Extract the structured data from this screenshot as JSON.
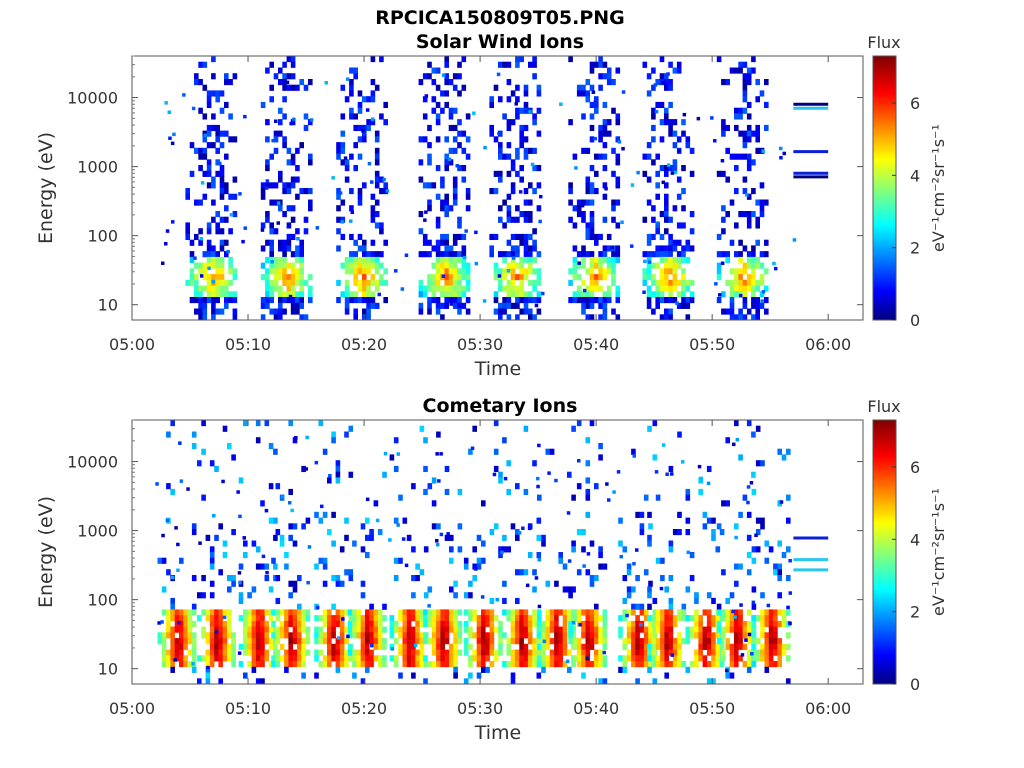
{
  "figure": {
    "title": "RPCICA150809T05.PNG"
  },
  "chart_data": [
    {
      "type": "heatmap",
      "title": "Solar Wind Ions",
      "xlabel": "Time",
      "ylabel": "Energy (eV)",
      "x_range": [
        "05:00",
        "06:03"
      ],
      "x_ticks": [
        "05:00",
        "05:10",
        "05:20",
        "05:30",
        "05:40",
        "05:50",
        "06:00"
      ],
      "y_scale": "log",
      "y_range": [
        6,
        40000
      ],
      "y_ticks": [
        "10",
        "100",
        "1000",
        "10000"
      ],
      "colorbar": {
        "label": "Flux",
        "unit": "eV⁻¹cm⁻²sr⁻¹s⁻¹",
        "range": [
          0,
          7.3
        ],
        "ticks": [
          "0",
          "2",
          "4",
          "6"
        ]
      },
      "bursts_center_min": [
        6.8,
        13.3,
        19.8,
        26.9,
        33.0,
        39.8,
        46.2,
        52.6
      ],
      "core_energy_eV": 25,
      "core_flux_peak": 5,
      "calibration_lines": [
        {
          "energy_eV": 800,
          "color": "#0a1fd6"
        },
        {
          "energy_eV": 710,
          "color": "#00007f"
        },
        {
          "energy_eV": 1650,
          "color": "#0a1fd6"
        },
        {
          "energy_eV": 8000,
          "color": "#00007f"
        },
        {
          "energy_eV": 7000,
          "color": "#29c6f0"
        }
      ],
      "grid": false
    },
    {
      "type": "heatmap",
      "title": "Cometary Ions",
      "xlabel": "Time",
      "ylabel": "Energy (eV)",
      "x_range": [
        "05:00",
        "06:03"
      ],
      "x_ticks": [
        "05:00",
        "05:10",
        "05:20",
        "05:30",
        "05:40",
        "05:50",
        "06:00"
      ],
      "y_scale": "log",
      "y_range": [
        6,
        40000
      ],
      "y_ticks": [
        "10",
        "100",
        "1000",
        "10000"
      ],
      "colorbar": {
        "label": "Flux",
        "unit": "eV⁻¹cm⁻²sr⁻¹s⁻¹",
        "range": [
          0,
          7.3
        ],
        "ticks": [
          "0",
          "2",
          "4",
          "6"
        ]
      },
      "bursts_center_min": [
        3.8,
        7.2,
        10.8,
        13.6,
        17.3,
        20.2,
        23.8,
        26.7,
        30.2,
        33.5,
        36.5,
        39.2,
        43.5,
        46.0,
        49.3,
        52.0,
        55.0
      ],
      "core_energy_eV": 25,
      "core_flux_peak": 7,
      "calibration_lines": [
        {
          "energy_eV": 780,
          "color": "#0a1fd6"
        },
        {
          "energy_eV": 380,
          "color": "#29c6f0"
        },
        {
          "energy_eV": 270,
          "color": "#29c6f0"
        }
      ],
      "grid": false
    }
  ]
}
